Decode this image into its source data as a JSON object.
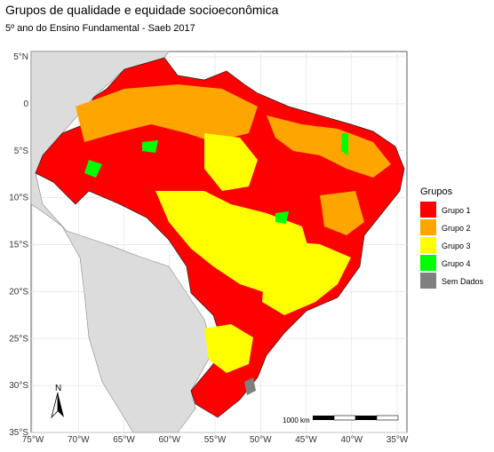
{
  "title": "Grupos de qualidade e equidade socioeconômica",
  "subtitle": "5º ano do Ensino Fundamental - Saeb 2017",
  "axes": {
    "xticks": [
      {
        "value": -75,
        "label": "75°W"
      },
      {
        "value": -70,
        "label": "70°W"
      },
      {
        "value": -65,
        "label": "65°W"
      },
      {
        "value": -60,
        "label": "60°W"
      },
      {
        "value": -55,
        "label": "55°W"
      },
      {
        "value": -50,
        "label": "50°W"
      },
      {
        "value": -45,
        "label": "45°W"
      },
      {
        "value": -40,
        "label": "40°W"
      },
      {
        "value": -35,
        "label": "35°W"
      }
    ],
    "yticks": [
      {
        "value": 5,
        "label": "5°N"
      },
      {
        "value": 0,
        "label": "0"
      },
      {
        "value": -5,
        "label": "5°S"
      },
      {
        "value": -10,
        "label": "10°S"
      },
      {
        "value": -15,
        "label": "15°S"
      },
      {
        "value": -20,
        "label": "20°S"
      },
      {
        "value": -25,
        "label": "25°S"
      },
      {
        "value": -30,
        "label": "30°S"
      },
      {
        "value": -35,
        "label": "35°S"
      }
    ]
  },
  "legend": {
    "title": "Grupos",
    "items": [
      {
        "label": "Grupo 1",
        "color": "#ff0000"
      },
      {
        "label": "Grupo 2",
        "color": "#ffa500"
      },
      {
        "label": "Grupo 3",
        "color": "#ffff00"
      },
      {
        "label": "Grupo 4",
        "color": "#00ff00"
      },
      {
        "label": "Sem Dados",
        "color": "#808080"
      }
    ]
  },
  "scale_bar": "1000 km",
  "north": "N"
}
